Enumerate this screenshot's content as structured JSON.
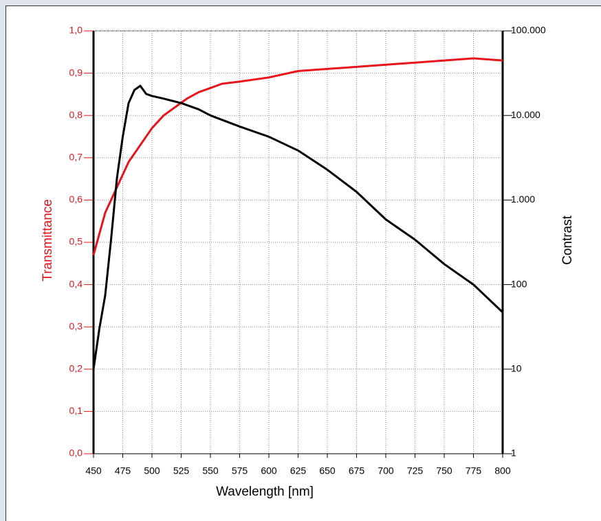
{
  "chart_data": {
    "type": "line",
    "xlabel": "Wavelength [nm]",
    "ylabel": "Transmittance",
    "y2label": "Contrast",
    "xlim": [
      450,
      800
    ],
    "xticks": [
      450,
      475,
      500,
      525,
      550,
      575,
      600,
      625,
      650,
      675,
      700,
      725,
      750,
      775,
      800
    ],
    "ylim": [
      0,
      1
    ],
    "yticks": [
      {
        "value": 0,
        "label": "0,0"
      },
      {
        "value": 0.1,
        "label": "0,1"
      },
      {
        "value": 0.2,
        "label": "0,2"
      },
      {
        "value": 0.3,
        "label": "0,3"
      },
      {
        "value": 0.4,
        "label": "0,4"
      },
      {
        "value": 0.5,
        "label": "0,5"
      },
      {
        "value": 0.6,
        "label": "0,6"
      },
      {
        "value": 0.7,
        "label": "0,7"
      },
      {
        "value": 0.8,
        "label": "0,8"
      },
      {
        "value": 0.9,
        "label": "0,9"
      },
      {
        "value": 1,
        "label": "1,0"
      }
    ],
    "y2lim": [
      1,
      100000
    ],
    "y2log": true,
    "y2ticks": [
      1,
      10,
      100,
      {
        "value": 1000,
        "label": "1.000"
      },
      {
        "value": 10000,
        "label": "10.000"
      },
      {
        "value": 100000,
        "label": "100.000"
      }
    ],
    "grid": true,
    "ylabel_color": "#e8141b",
    "series": [
      {
        "color": "#e8141b",
        "axis": "y",
        "x": [
          450,
          455,
          460,
          470,
          480,
          490,
          500,
          510,
          520,
          530,
          540,
          550,
          560,
          575,
          600,
          625,
          650,
          675,
          700,
          725,
          750,
          775,
          800
        ],
        "values": [
          0.47,
          0.52,
          0.57,
          0.63,
          0.69,
          0.73,
          0.77,
          0.8,
          0.82,
          0.84,
          0.855,
          0.865,
          0.875,
          0.88,
          0.89,
          0.905,
          0.91,
          0.915,
          0.92,
          0.925,
          0.93,
          0.935,
          0.93
        ]
      },
      {
        "color": "#000000",
        "axis": "y2",
        "x": [
          450,
          455,
          460,
          465,
          470,
          475,
          480,
          485,
          490,
          495,
          500,
          510,
          525,
          540,
          550,
          575,
          600,
          625,
          650,
          675,
          700,
          725,
          750,
          775,
          800
        ],
        "values": [
          10,
          30,
          75,
          340,
          1800,
          5600,
          14000,
          20000,
          22400,
          18000,
          17000,
          15800,
          14000,
          11800,
          10000,
          7400,
          5600,
          3850,
          2280,
          1250,
          590,
          340,
          175,
          100,
          47
        ]
      }
    ]
  }
}
